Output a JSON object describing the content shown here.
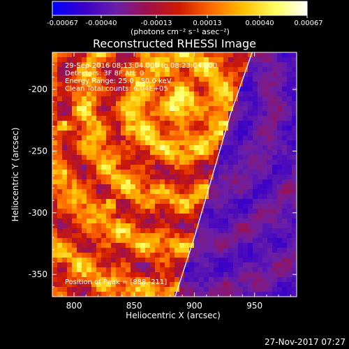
{
  "colors": {
    "background": "#000000",
    "text": "#ffffff",
    "colormap": [
      "#0000ff",
      "#3a00c8",
      "#6a1fa8",
      "#a0104a",
      "#d01a00",
      "#ff6a00",
      "#ffc000",
      "#ffff60",
      "#ffffff"
    ]
  },
  "colorbar": {
    "ticks": [
      "-0.00067",
      "-0.00040",
      "-0.00013",
      "0.00013",
      "0.00040",
      "0.00067"
    ],
    "unit_label": "(photons cm⁻² s⁻¹ asec⁻²)"
  },
  "chart_data": {
    "type": "heatmap",
    "title": "Reconstructed RHESSI Image",
    "xlabel": "Heliocentric X (arcsec)",
    "ylabel": "Heliocentric Y (arcsec)",
    "xlim": [
      782,
      985
    ],
    "ylim": [
      -368,
      -170
    ],
    "x_ticks": [
      800,
      850,
      900,
      950
    ],
    "y_ticks": [
      -350,
      -300,
      -250,
      -200
    ],
    "value_range": [
      -0.00067,
      0.00067
    ],
    "annotations": [
      "29-Sep-2016 08:13:04.000 to 08:23:04.000",
      "Detectors: 3F 8F  Att: 0",
      "Energy Range: 25.0 - 50.0 keV",
      "Clean    Total counts: 6.04E+05"
    ],
    "peak_label": "Position of Peak = [888,-211]",
    "peak": [
      888,
      -211
    ],
    "limb_curve": [
      [
        884,
        -368
      ],
      [
        900,
        -320
      ],
      [
        915,
        -270
      ],
      [
        930,
        -220
      ],
      [
        948,
        -170
      ]
    ],
    "bright_spots": [
      [
        792,
        -229
      ],
      [
        843,
        -233
      ],
      [
        831,
        -293
      ]
    ],
    "grid": false
  },
  "footer": {
    "date": "27-Nov-2017 07:27"
  }
}
